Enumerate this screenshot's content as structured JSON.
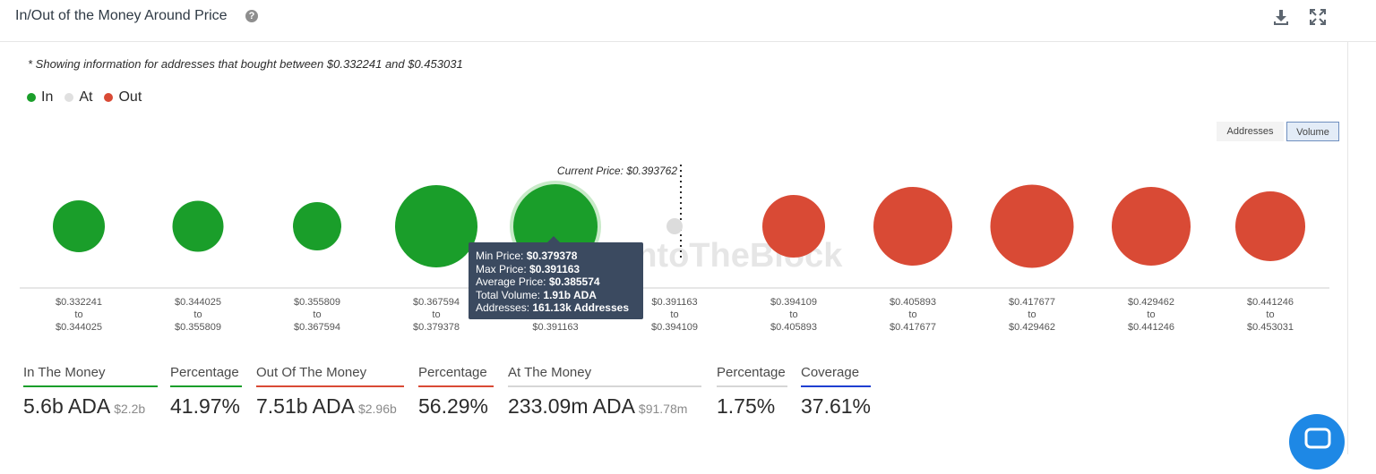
{
  "header": {
    "title": "In/Out of the Money Around Price",
    "help_icon": "question-circle-icon",
    "download_icon": "download-icon",
    "expand_icon": "expand-icon"
  },
  "note": "* Showing information for addresses that bought between $0.332241 and $0.453031",
  "legend": [
    {
      "label": "In",
      "color": "#1a9e2a"
    },
    {
      "label": "At",
      "color": "#e0e0e0"
    },
    {
      "label": "Out",
      "color": "#d94a35"
    }
  ],
  "toggles": {
    "addresses": "Addresses",
    "volume": "Volume",
    "active": "Volume"
  },
  "watermark": "IntoTheBlock",
  "chart_data": {
    "type": "scatter",
    "current_price_label": "Current Price: $0.393762",
    "current_price_after_index": 5,
    "clusters": [
      {
        "from": "$0.332241",
        "to": "$0.344025",
        "status": "In",
        "size": 29
      },
      {
        "from": "$0.344025",
        "to": "$0.355809",
        "status": "In",
        "size": 28.5
      },
      {
        "from": "$0.355809",
        "to": "$0.367594",
        "status": "In",
        "size": 27
      },
      {
        "from": "$0.367594",
        "to": "$0.379378",
        "status": "In",
        "size": 46
      },
      {
        "from": "$0.379378",
        "to": "$0.391163",
        "status": "In",
        "size": 47
      },
      {
        "from": "$0.391163",
        "to": "$0.394109",
        "status": "At",
        "size": 9
      },
      {
        "from": "$0.394109",
        "to": "$0.405893",
        "status": "Out",
        "size": 35
      },
      {
        "from": "$0.405893",
        "to": "$0.417677",
        "status": "Out",
        "size": 44
      },
      {
        "from": "$0.417677",
        "to": "$0.429462",
        "status": "Out",
        "size": 46.5
      },
      {
        "from": "$0.429462",
        "to": "$0.441246",
        "status": "Out",
        "size": 44
      },
      {
        "from": "$0.441246",
        "to": "$0.453031",
        "status": "Out",
        "size": 39
      }
    ],
    "to_word": "to"
  },
  "tooltip": {
    "min_label": "Min Price:",
    "min_value": "$0.379378",
    "max_label": "Max Price:",
    "max_value": "$0.391163",
    "avg_label": "Average Price:",
    "avg_value": "$0.385574",
    "vol_label": "Total Volume:",
    "vol_value": "1.91b ADA",
    "addr_label": "Addresses:",
    "addr_value": "161.13k Addresses"
  },
  "stats": {
    "in_label": "In The Money",
    "in_value": "5.6b ADA",
    "in_sub": "$2.2b",
    "in_pct_label": "Percentage",
    "in_pct": "41.97%",
    "out_label": "Out Of The Money",
    "out_value": "7.51b ADA",
    "out_sub": "$2.96b",
    "out_pct_label": "Percentage",
    "out_pct": "56.29%",
    "at_label": "At The Money",
    "at_value": "233.09m ADA",
    "at_sub": "$91.78m",
    "at_pct_label": "Percentage",
    "at_pct": "1.75%",
    "cov_label": "Coverage",
    "cov_pct": "37.61%"
  },
  "colors": {
    "in": "#1a9e2a",
    "at": "#dcdcdc",
    "out": "#d94a35",
    "coverage": "#1f3fd1",
    "neutral": "#d0d0d0"
  },
  "chat_icon": "chat-bubble-icon"
}
